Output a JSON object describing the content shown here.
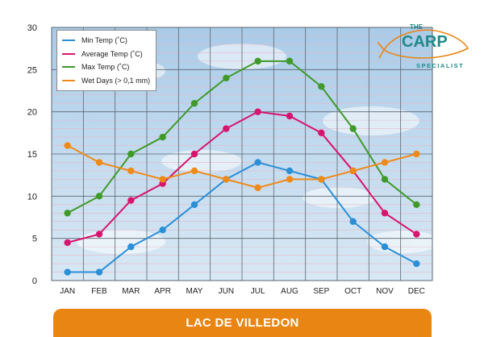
{
  "chart_data": {
    "type": "line",
    "categories": [
      "JAN",
      "FEB",
      "MAR",
      "APR",
      "MAY",
      "JUN",
      "JUL",
      "AUG",
      "SEP",
      "OCT",
      "NOV",
      "DEC"
    ],
    "ylim": [
      0,
      30
    ],
    "yticks": [
      "0",
      "5",
      "10",
      "15",
      "20",
      "25",
      "30"
    ],
    "grid": true,
    "legend_position": "top-left",
    "series": [
      {
        "name": "Min Temp (˚C)",
        "color": "#2b8fd6",
        "values": [
          1,
          1,
          4,
          6,
          9,
          12,
          14,
          13,
          12,
          7,
          4,
          2
        ]
      },
      {
        "name": "Average Temp (˚C)",
        "color": "#d6156f",
        "values": [
          4.5,
          5.5,
          9.5,
          11.5,
          15,
          18,
          20,
          19.5,
          17.5,
          13,
          8,
          5.5
        ]
      },
      {
        "name": "Max Temp (˚C)",
        "color": "#3f9a2a",
        "values": [
          8,
          10,
          15,
          17,
          21,
          24,
          26,
          26,
          23,
          18,
          12,
          9
        ]
      },
      {
        "name": "Wet Days (> 0,1 mm)",
        "color": "#ee8a1a",
        "values": [
          16,
          14,
          13,
          12,
          13,
          12,
          11,
          12,
          12,
          13,
          14,
          15
        ]
      }
    ]
  },
  "footer": {
    "title": "LAC DE VILLEDON"
  },
  "logo": {
    "line1": "THE",
    "line2": "CARP",
    "line3": "SPECIALIST"
  },
  "colors": {
    "accent": "#e98512",
    "frame": "#dcdcdc",
    "sky": "#b3d1ea"
  }
}
